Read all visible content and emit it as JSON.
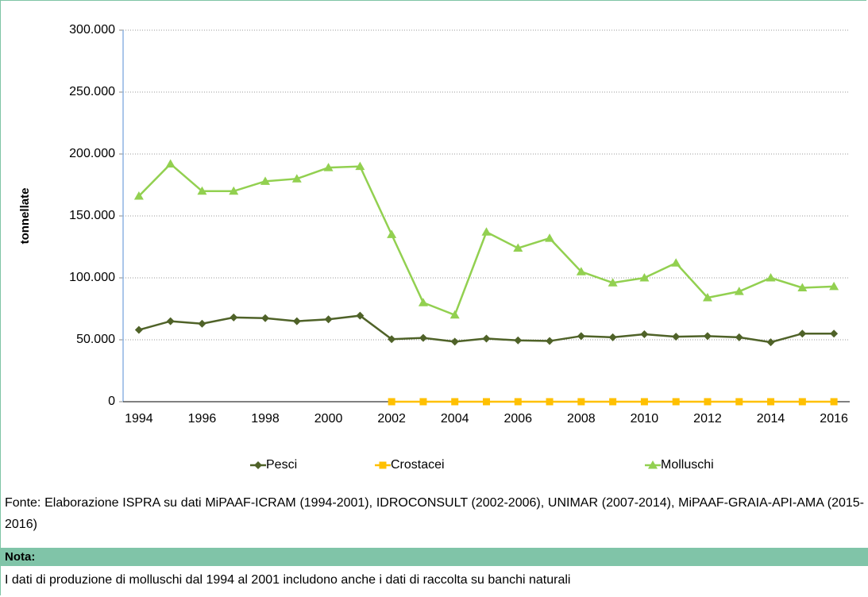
{
  "chart_data": {
    "type": "line",
    "y_label": "tonnellate",
    "categories": [
      "1994",
      null,
      "1996",
      null,
      "1998",
      null,
      "2000",
      null,
      "2002",
      null,
      "2004",
      null,
      "2006",
      null,
      "2008",
      null,
      "2010",
      null,
      "2012",
      null,
      "2014",
      null,
      "2016"
    ],
    "series": [
      {
        "name": "Pesci",
        "color": "#4f6228",
        "marker": "diamond",
        "values": [
          58000,
          65000,
          63000,
          68000,
          67500,
          65000,
          66500,
          69500,
          50500,
          51500,
          48500,
          51000,
          49500,
          49000,
          53000,
          52000,
          54500,
          52500,
          53000,
          52000,
          48000,
          55000,
          55000
        ]
      },
      {
        "name": "Crostacei",
        "color": "#ffc000",
        "marker": "square",
        "values": [
          null,
          null,
          null,
          null,
          null,
          null,
          null,
          null,
          0,
          0,
          0,
          0,
          0,
          0,
          0,
          0,
          0,
          0,
          0,
          0,
          0,
          0,
          0
        ]
      },
      {
        "name": "Molluschi",
        "color": "#92d050",
        "marker": "triangle",
        "values": [
          166000,
          192000,
          170000,
          170000,
          178000,
          180000,
          189000,
          190000,
          135000,
          80000,
          70000,
          137000,
          124000,
          132000,
          105000,
          96000,
          100000,
          112000,
          84000,
          89000,
          100000,
          92000,
          93000
        ]
      }
    ],
    "ylim": [
      0,
      300000
    ],
    "yticks": [
      0,
      {
        "value": 50000,
        "label": "50.000"
      },
      {
        "value": 100000,
        "label": "100.000"
      },
      {
        "value": 150000,
        "label": "150.000"
      },
      {
        "value": 200000,
        "label": "200.000"
      },
      {
        "value": 250000,
        "label": "250.000"
      },
      {
        "value": 300000,
        "label": "300.000"
      }
    ],
    "grid": true,
    "legend": "bottom"
  },
  "source": "Fonte: Elaborazione ISPRA su dati MiPAAF-ICRAM (1994-2001), IDROCONSULT (2002-2006), UNIMAR (2007-2014), MiPAAF-GRAIA-API-AMA (2015-2016)",
  "note_title": "Nota:",
  "note_text": "I dati di produzione di molluschi dal 1994 al 2001 includono anche i dati di raccolta su banchi naturali"
}
